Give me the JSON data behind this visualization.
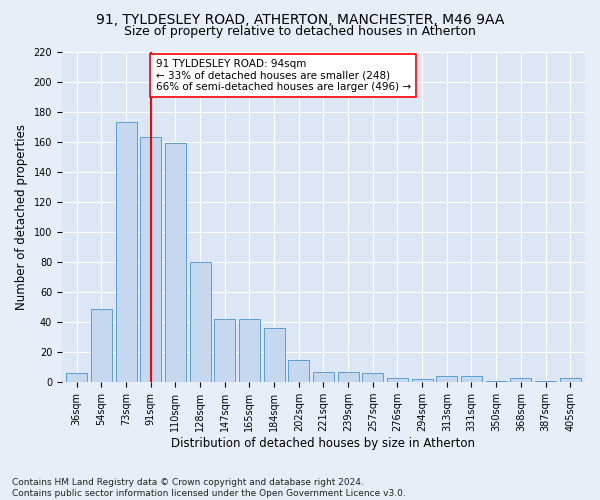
{
  "title1": "91, TYLDESLEY ROAD, ATHERTON, MANCHESTER, M46 9AA",
  "title2": "Size of property relative to detached houses in Atherton",
  "xlabel": "Distribution of detached houses by size in Atherton",
  "ylabel": "Number of detached properties",
  "categories": [
    "36sqm",
    "54sqm",
    "73sqm",
    "91sqm",
    "110sqm",
    "128sqm",
    "147sqm",
    "165sqm",
    "184sqm",
    "202sqm",
    "221sqm",
    "239sqm",
    "257sqm",
    "276sqm",
    "294sqm",
    "313sqm",
    "331sqm",
    "350sqm",
    "368sqm",
    "387sqm",
    "405sqm"
  ],
  "values": [
    6,
    49,
    173,
    163,
    159,
    80,
    42,
    42,
    36,
    15,
    7,
    7,
    6,
    3,
    2,
    4,
    4,
    1,
    3,
    1,
    3
  ],
  "bar_color": "#c5d8f0",
  "bar_edge_color": "#5a9fd4",
  "vline_x_index": 3,
  "vline_color": "red",
  "annotation_text": "91 TYLDESLEY ROAD: 94sqm\n← 33% of detached houses are smaller (248)\n66% of semi-detached houses are larger (496) →",
  "annotation_box_color": "white",
  "annotation_box_edge_color": "red",
  "ylim": [
    0,
    220
  ],
  "yticks": [
    0,
    20,
    40,
    60,
    80,
    100,
    120,
    140,
    160,
    180,
    200,
    220
  ],
  "footnote": "Contains HM Land Registry data © Crown copyright and database right 2024.\nContains public sector information licensed under the Open Government Licence v3.0.",
  "background_color": "#e8eef8",
  "plot_background": "#dde6f5",
  "grid_color": "white",
  "title_fontsize": 10,
  "subtitle_fontsize": 9,
  "axis_label_fontsize": 8.5,
  "tick_fontsize": 7,
  "footnote_fontsize": 6.5,
  "annotation_fontsize": 7.5
}
